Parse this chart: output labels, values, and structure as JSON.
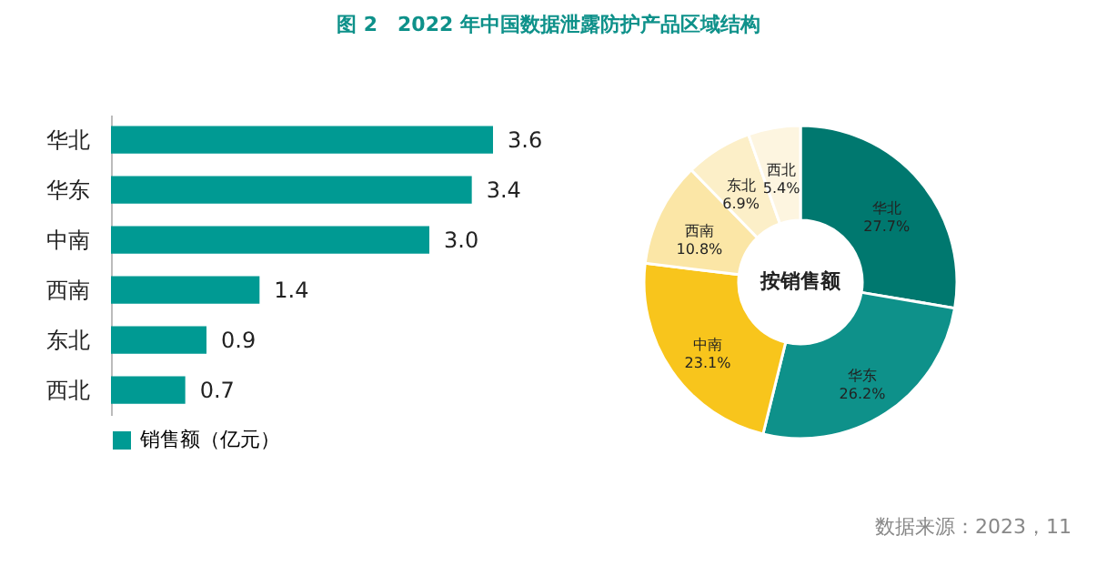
{
  "chart_data": [
    {
      "type": "bar",
      "orientation": "horizontal",
      "title": "图 2　2022 年中国数据泄露防护产品区域结构",
      "categories": [
        "华北",
        "华东",
        "中南",
        "西南",
        "东北",
        "西北"
      ],
      "series": [
        {
          "name": "销售额（亿元）",
          "color": "#009a93",
          "values": [
            3.6,
            3.4,
            3.0,
            1.4,
            0.9,
            0.7
          ],
          "value_labels": [
            "3.6",
            "3.4",
            "3.0",
            "1.4",
            "0.9",
            "0.7"
          ]
        }
      ],
      "legend": "bottom",
      "grid": false
    },
    {
      "type": "donut",
      "title": "按销售额",
      "categories": [
        "华北",
        "华东",
        "中南",
        "西南",
        "东北",
        "西北"
      ],
      "values": [
        27.7,
        26.2,
        23.1,
        10.8,
        6.9,
        5.4
      ],
      "value_labels": [
        "27.7%",
        "26.2%",
        "23.1%",
        "10.8%",
        "6.9%",
        "5.4%"
      ],
      "colors": [
        "#00786f",
        "#0e918a",
        "#f8c51c",
        "#fbe6a6",
        "#fcefc8",
        "#fdf5e0"
      ],
      "legend": false,
      "annotations": [
        "数据来源：2023，11"
      ]
    }
  ]
}
